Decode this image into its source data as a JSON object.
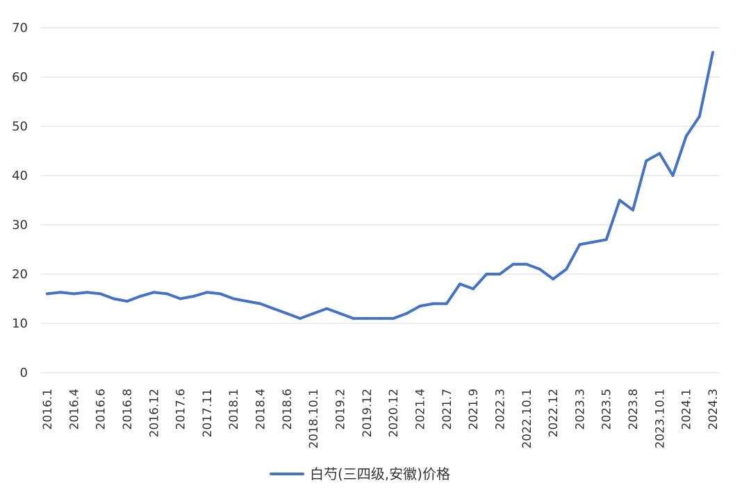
{
  "chart_data": {
    "type": "line",
    "title": "",
    "xlabel": "",
    "ylabel": "",
    "ylim": [
      0,
      70
    ],
    "yticks": [
      "0",
      "10",
      "20",
      "30",
      "40",
      "50",
      "60",
      "70"
    ],
    "grid": true,
    "legend_position": "bottom-center",
    "x": [
      "2016.1",
      "2016.3",
      "2016.4",
      "2016.5",
      "2016.6",
      "2016.7",
      "2016.8",
      "2016.10",
      "2016.12",
      "2017.3",
      "2017.6",
      "2017.9",
      "2017.11",
      "2017.12",
      "2018.1",
      "2018.3",
      "2018.4",
      "2018.5",
      "2018.6",
      "2018.8",
      "2018.10.1",
      "2018.12",
      "2019.2",
      "2019.8",
      "2019.12",
      "2020.6",
      "2020.12",
      "2021.1",
      "2021.4",
      "2021.6",
      "2021.7",
      "2021.8",
      "2021.9",
      "2022.1",
      "2022.3",
      "2022.7",
      "2022.10.1",
      "2022.11",
      "2022.12",
      "2023.1",
      "2023.3",
      "2023.4",
      "2023.5",
      "2023.6",
      "2023.8",
      "2023.9",
      "2023.10.1",
      "2023.11",
      "2024.1",
      "2024.2",
      "2024.3"
    ],
    "xtick_labels": [
      "2016.1",
      "2016.4",
      "2016.6",
      "2016.8",
      "2016.12",
      "2017.6",
      "2017.11",
      "2018.1",
      "2018.4",
      "2018.6",
      "2018.10.1",
      "2019.2",
      "2019.12",
      "2020.12",
      "2021.4",
      "2021.7",
      "2021.9",
      "2022.3",
      "2022.10.1",
      "2022.12",
      "2023.3",
      "2023.5",
      "2023.8",
      "2023.10.1",
      "2024.1",
      "2024.3"
    ],
    "series": [
      {
        "name": "白芍(三四级,安徽)价格",
        "color": "#4472c4",
        "values": [
          16,
          16.3,
          16,
          16.3,
          16,
          15,
          14.5,
          15.5,
          16.3,
          16,
          15,
          15.5,
          16.3,
          16,
          15,
          14.5,
          14,
          13,
          12,
          11,
          12,
          13,
          12,
          11,
          11,
          11,
          11,
          12,
          13.5,
          14,
          14,
          18,
          17,
          20,
          20,
          22,
          22,
          21,
          19,
          21,
          26,
          26.5,
          27,
          35,
          33,
          43,
          44.5,
          40,
          48,
          52,
          65
        ]
      }
    ]
  }
}
